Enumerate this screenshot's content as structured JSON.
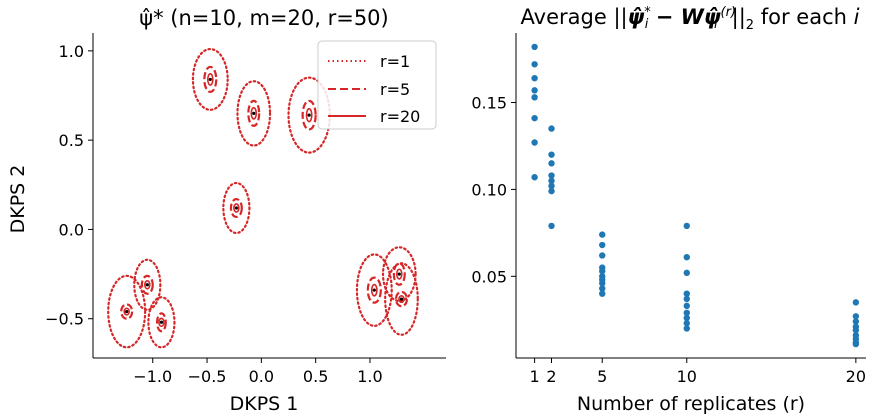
{
  "chart_data": [
    {
      "type": "scatter",
      "title": "ψ̂* (n=10, m=20, r=50)",
      "xlabel": "DKPS 1",
      "ylabel": "DKPS 2",
      "xlim": [
        -1.55,
        1.7
      ],
      "ylim": [
        -0.72,
        1.1
      ],
      "xticks": [
        -1.0,
        -0.5,
        0.0,
        0.5,
        1.0
      ],
      "xtick_labels": [
        "−1.0",
        "−0.5",
        "0.0",
        "0.5",
        "1.0"
      ],
      "yticks": [
        -0.5,
        0.0,
        0.5,
        1.0
      ],
      "ytick_labels": [
        "−0.5",
        "0.0",
        "0.5",
        "1.0"
      ],
      "legend_position": "top-right",
      "legend": [
        {
          "label": "r=1",
          "style": "dotted"
        },
        {
          "label": "r=5",
          "style": "dashed"
        },
        {
          "label": "r=20",
          "style": "solid"
        }
      ],
      "ellipse_color": "#d62728",
      "points": [
        {
          "x": -0.47,
          "y": 0.84,
          "rx1": 0.16,
          "ry1": 0.17,
          "rx5": 0.055,
          "ry5": 0.07
        },
        {
          "x": -0.07,
          "y": 0.65,
          "rx1": 0.15,
          "ry1": 0.18,
          "rx5": 0.05,
          "ry5": 0.07
        },
        {
          "x": 0.44,
          "y": 0.64,
          "rx1": 0.19,
          "ry1": 0.21,
          "rx5": 0.06,
          "ry5": 0.08
        },
        {
          "x": -0.23,
          "y": 0.12,
          "rx1": 0.12,
          "ry1": 0.14,
          "rx5": 0.05,
          "ry5": 0.05
        },
        {
          "x": -1.05,
          "y": -0.31,
          "rx1": 0.12,
          "ry1": 0.14,
          "rx5": 0.05,
          "ry5": 0.05
        },
        {
          "x": -0.92,
          "y": -0.52,
          "rx1": 0.12,
          "ry1": 0.14,
          "rx5": 0.04,
          "ry5": 0.05
        },
        {
          "x": -1.24,
          "y": -0.46,
          "rx1": 0.17,
          "ry1": 0.2,
          "rx5": 0.05,
          "ry5": 0.04
        },
        {
          "x": 1.04,
          "y": -0.34,
          "rx1": 0.16,
          "ry1": 0.2,
          "rx5": 0.06,
          "ry5": 0.07
        },
        {
          "x": 1.27,
          "y": -0.25,
          "rx1": 0.15,
          "ry1": 0.15,
          "rx5": 0.05,
          "ry5": 0.06
        },
        {
          "x": 1.29,
          "y": -0.39,
          "rx1": 0.15,
          "ry1": 0.2,
          "rx5": 0.05,
          "ry5": 0.04
        }
      ]
    },
    {
      "type": "scatter",
      "title_parts": {
        "prefix": "Average ||",
        "psi_star": "ψ̂",
        "star": "*",
        "sub_i": "i",
        "minus_w": " − W",
        "psi_r": "ψ̂",
        "sup_r": "(r)",
        "close": "||",
        "sub_2": "2",
        "suffix": " for each ",
        "i": "i"
      },
      "xlabel": "Number of replicates (r)",
      "ylabel": "",
      "xlim": [
        -0.1,
        20.6
      ],
      "ylim": [
        0.003,
        0.19
      ],
      "xticks": [
        1,
        2,
        5,
        10,
        20
      ],
      "xtick_labels": [
        "1",
        "2",
        "5",
        "10",
        "20"
      ],
      "yticks": [
        0.05,
        0.1,
        0.15
      ],
      "ytick_labels": [
        "0.05",
        "0.10",
        "0.15"
      ],
      "point_color": "#1f77b4",
      "series": [
        {
          "x": 1,
          "values": [
            0.182,
            0.172,
            0.164,
            0.157,
            0.153,
            0.141,
            0.127,
            0.107
          ]
        },
        {
          "x": 2,
          "values": [
            0.135,
            0.12,
            0.115,
            0.108,
            0.105,
            0.102,
            0.099,
            0.079
          ]
        },
        {
          "x": 5,
          "values": [
            0.074,
            0.068,
            0.062,
            0.055,
            0.053,
            0.05,
            0.048,
            0.046,
            0.043,
            0.04
          ]
        },
        {
          "x": 10,
          "values": [
            0.079,
            0.061,
            0.052,
            0.04,
            0.037,
            0.033,
            0.029,
            0.026,
            0.023,
            0.02
          ]
        },
        {
          "x": 20,
          "values": [
            0.035,
            0.027,
            0.024,
            0.021,
            0.019,
            0.016,
            0.014,
            0.012,
            0.011
          ]
        }
      ]
    }
  ]
}
